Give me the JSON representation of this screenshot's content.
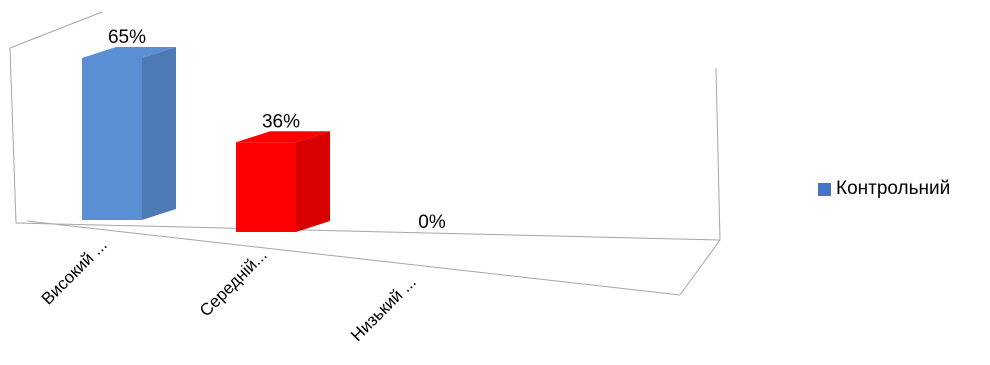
{
  "chart_data": {
    "type": "bar",
    "title": "",
    "xlabel": "",
    "ylabel": "",
    "categories": [
      "Високий ...",
      "Середній...",
      "Низький ..."
    ],
    "series": [
      {
        "name": "Контрольний",
        "values": [
          65,
          36,
          0
        ],
        "labels": [
          "65%",
          "36%",
          "0%"
        ]
      }
    ],
    "ylim": [
      0,
      65
    ],
    "bar_colors": [
      "#5b8fd4",
      "#ff0000",
      "#5b8fd4"
    ],
    "series_color": "#4472c4",
    "legend_position": "right",
    "grid": false,
    "style": "3d"
  }
}
